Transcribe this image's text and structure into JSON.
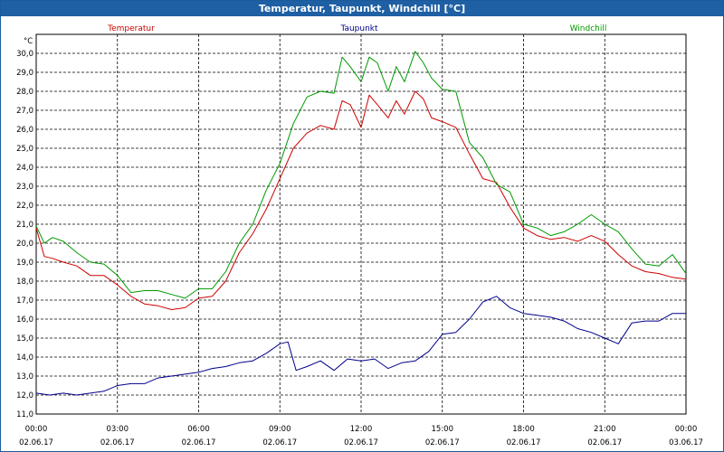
{
  "window": {
    "title": "Temperatur, Taupunkt, Windchill [°C]"
  },
  "chart_data": {
    "type": "line",
    "ylabel": "°C",
    "ylim": [
      11.0,
      31.0
    ],
    "ytick_labels": [
      "11,0",
      "12,0",
      "13,0",
      "14,0",
      "15,0",
      "16,0",
      "17,0",
      "18,0",
      "19,0",
      "20,0",
      "21,0",
      "22,0",
      "23,0",
      "24,0",
      "25,0",
      "26,0",
      "27,0",
      "28,0",
      "29,0",
      "30,0"
    ],
    "xlim": [
      0,
      24
    ],
    "xticks": [
      {
        "time": "00:00",
        "date": "02.06.17"
      },
      {
        "time": "03:00",
        "date": "02.06.17"
      },
      {
        "time": "06:00",
        "date": "02.06.17"
      },
      {
        "time": "09:00",
        "date": "02.06.17"
      },
      {
        "time": "12:00",
        "date": "02.06.17"
      },
      {
        "time": "15:00",
        "date": "02.06.17"
      },
      {
        "time": "18:00",
        "date": "02.06.17"
      },
      {
        "time": "21:00",
        "date": "02.06.17"
      },
      {
        "time": "00:00",
        "date": "03.06.17"
      }
    ],
    "grid": true,
    "legend_position": "top",
    "series": [
      {
        "name": "Temperatur",
        "color": "#cc0000",
        "x": [
          0,
          0.3,
          0.6,
          1,
          1.5,
          2,
          2.5,
          3,
          3.5,
          4,
          4.5,
          5,
          5.5,
          6,
          6.5,
          7,
          7.5,
          8,
          8.5,
          9,
          9.5,
          10,
          10.5,
          11,
          11.3,
          11.6,
          12,
          12.3,
          12.6,
          13,
          13.3,
          13.6,
          14,
          14.3,
          14.6,
          15,
          15.5,
          16,
          16.5,
          17,
          17.5,
          18,
          18.5,
          19,
          19.5,
          20,
          20.5,
          21,
          21.5,
          22,
          22.5,
          23,
          23.5,
          24
        ],
        "y": [
          20.8,
          19.3,
          19.2,
          19.0,
          18.8,
          18.3,
          18.3,
          17.8,
          17.2,
          16.8,
          16.7,
          16.5,
          16.6,
          17.1,
          17.2,
          18.0,
          19.5,
          20.5,
          21.8,
          23.4,
          25.0,
          25.8,
          26.2,
          26.0,
          27.5,
          27.3,
          26.1,
          27.8,
          27.3,
          26.6,
          27.5,
          26.8,
          28.0,
          27.6,
          26.6,
          26.4,
          26.1,
          24.7,
          23.4,
          23.2,
          21.9,
          20.8,
          20.4,
          20.2,
          20.3,
          20.1,
          20.4,
          20.1,
          19.4,
          18.8,
          18.5,
          18.4,
          18.2,
          18.1
        ]
      },
      {
        "name": "Taupunkt",
        "color": "#00008b",
        "x": [
          0,
          0.5,
          1,
          1.5,
          2,
          2.5,
          3,
          3.5,
          4,
          4.5,
          5,
          5.5,
          6,
          6.5,
          7,
          7.5,
          8,
          8.5,
          9,
          9.3,
          9.6,
          10,
          10.5,
          11,
          11.5,
          12,
          12.5,
          13,
          13.5,
          14,
          14.5,
          15,
          15.5,
          16,
          16.5,
          17,
          17.5,
          18,
          18.5,
          19,
          19.5,
          20,
          20.5,
          21,
          21.5,
          22,
          22.5,
          23,
          23.5,
          24
        ],
        "y": [
          12.1,
          12.0,
          12.1,
          12.0,
          12.1,
          12.2,
          12.5,
          12.6,
          12.6,
          12.9,
          13.0,
          13.1,
          13.2,
          13.4,
          13.5,
          13.7,
          13.8,
          14.2,
          14.7,
          14.8,
          13.3,
          13.5,
          13.8,
          13.3,
          13.9,
          13.8,
          13.9,
          13.4,
          13.7,
          13.8,
          14.3,
          15.2,
          15.3,
          16.0,
          16.9,
          17.2,
          16.6,
          16.3,
          16.2,
          16.1,
          15.9,
          15.5,
          15.3,
          15.0,
          14.7,
          15.8,
          15.9,
          15.9,
          16.3,
          16.3
        ]
      },
      {
        "name": "Windchill",
        "color": "#009900",
        "x": [
          0,
          0.3,
          0.6,
          1,
          1.5,
          2,
          2.5,
          3,
          3.5,
          4,
          4.5,
          5,
          5.5,
          6,
          6.5,
          7,
          7.5,
          8,
          8.5,
          9,
          9.5,
          10,
          10.5,
          11,
          11.3,
          11.6,
          12,
          12.3,
          12.6,
          13,
          13.3,
          13.6,
          14,
          14.3,
          14.6,
          15,
          15.5,
          16,
          16.5,
          17,
          17.5,
          18,
          18.5,
          19,
          19.5,
          20,
          20.5,
          21,
          21.5,
          22,
          22.5,
          23,
          23.5,
          24
        ],
        "y": [
          20.9,
          20.0,
          20.3,
          20.1,
          19.5,
          19.0,
          18.9,
          18.3,
          17.4,
          17.5,
          17.5,
          17.3,
          17.1,
          17.6,
          17.6,
          18.5,
          20.0,
          21.0,
          22.8,
          24.2,
          26.3,
          27.7,
          28.0,
          27.9,
          29.8,
          29.3,
          28.5,
          29.8,
          29.5,
          28.0,
          29.3,
          28.5,
          30.1,
          29.5,
          28.7,
          28.1,
          28.0,
          25.3,
          24.5,
          23.1,
          22.7,
          21.0,
          20.8,
          20.4,
          20.6,
          21.0,
          21.5,
          21.0,
          20.6,
          19.7,
          18.9,
          18.8,
          19.4,
          18.4
        ]
      }
    ]
  }
}
